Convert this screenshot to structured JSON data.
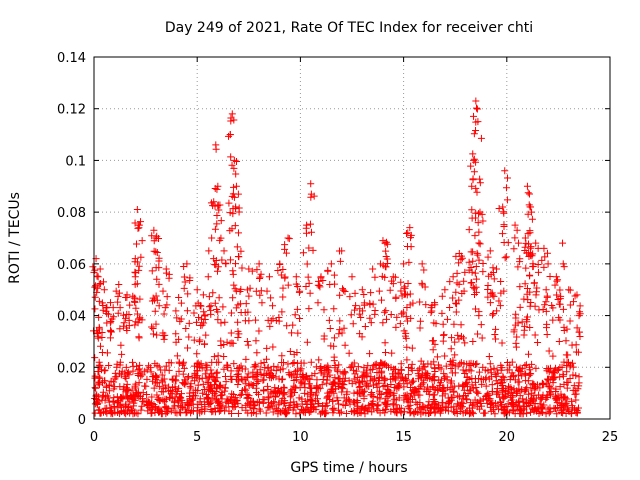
{
  "chart_data": {
    "type": "scatter",
    "title": "Day 249 of 2021, Rate Of TEC Index for receiver chti",
    "xlabel": "GPS time / hours",
    "ylabel": "ROTI / TECUs",
    "xlim": [
      0,
      25
    ],
    "ylim": [
      0,
      0.14
    ],
    "xticks": [
      "0",
      "5",
      "10",
      "15",
      "20",
      "25"
    ],
    "yticks": [
      "0",
      "0.02",
      "0.04",
      "0.06",
      "0.08",
      "0.1",
      "0.12",
      "0.14"
    ],
    "grid": true,
    "marker": "+",
    "color": "#ff0000",
    "series": [
      {
        "name": "ROTI",
        "x": [
          0.1,
          0.2,
          0.3,
          0.5,
          0.8,
          1.2,
          1.6,
          2.0,
          2.1,
          2.2,
          2.9,
          3.0,
          3.5,
          4.1,
          4.5,
          5.0,
          5.3,
          5.7,
          5.8,
          5.9,
          6.0,
          6.3,
          6.6,
          6.7,
          6.8,
          6.9,
          7.0,
          7.5,
          8.0,
          8.5,
          9.0,
          9.4,
          9.8,
          10.3,
          10.5,
          11.0,
          11.5,
          12.0,
          12.5,
          13.0,
          13.5,
          14.0,
          14.1,
          14.5,
          15.0,
          15.2,
          15.3,
          15.9,
          16.5,
          17.0,
          17.4,
          17.7,
          17.8,
          18.3,
          18.4,
          18.5,
          18.6,
          18.7,
          19.2,
          19.5,
          19.8,
          19.9,
          20.4,
          20.5,
          20.9,
          21.0,
          21.1,
          21.2,
          21.4,
          21.8,
          22.0,
          22.4,
          22.7,
          23.0,
          23.4
        ],
        "y": [
          0.062,
          0.055,
          0.058,
          0.05,
          0.045,
          0.052,
          0.048,
          0.062,
          0.081,
          0.075,
          0.073,
          0.07,
          0.058,
          0.047,
          0.06,
          0.05,
          0.048,
          0.07,
          0.084,
          0.106,
          0.09,
          0.065,
          0.11,
          0.118,
          0.1,
          0.09,
          0.072,
          0.058,
          0.06,
          0.055,
          0.06,
          0.07,
          0.055,
          0.075,
          0.091,
          0.055,
          0.06,
          0.065,
          0.055,
          0.05,
          0.058,
          0.069,
          0.068,
          0.055,
          0.06,
          0.072,
          0.074,
          0.06,
          0.045,
          0.05,
          0.055,
          0.064,
          0.063,
          0.09,
          0.1,
          0.123,
          0.115,
          0.08,
          0.065,
          0.058,
          0.082,
          0.096,
          0.075,
          0.073,
          0.07,
          0.09,
          0.087,
          0.08,
          0.068,
          0.066,
          0.06,
          0.055,
          0.068,
          0.05,
          0.048
        ]
      }
    ],
    "background_band": {
      "description": "dense band of points between 0 and about 0.02 across 0 to 23.5 hours",
      "x_range": [
        0,
        23.5
      ],
      "y_range": [
        0.002,
        0.022
      ]
    }
  }
}
